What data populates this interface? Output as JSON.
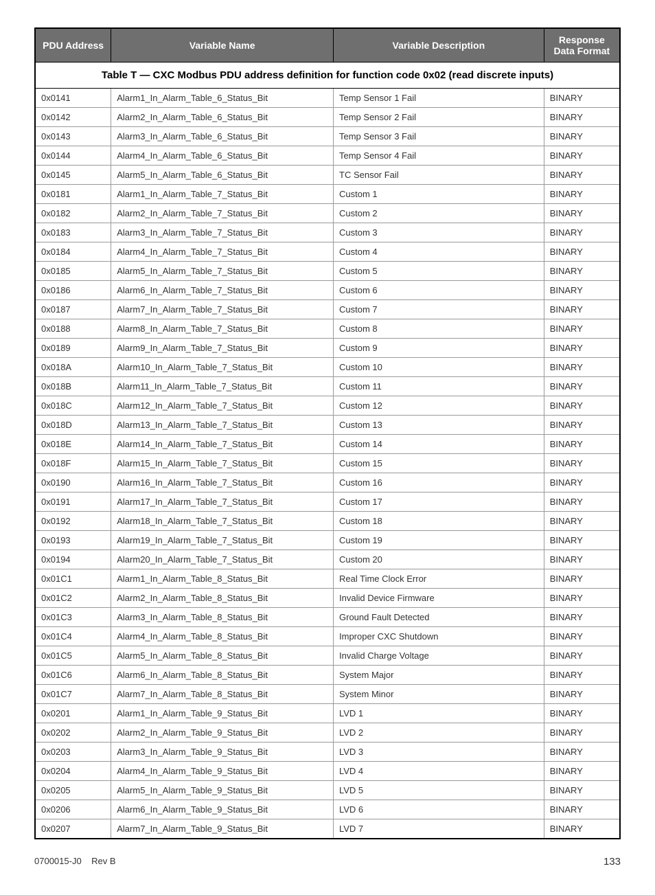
{
  "table": {
    "caption": "Table T  —  CXC Modbus PDU address definition for function code 0x02 (read discrete inputs)",
    "columns": [
      "PDU Address",
      "Variable Name",
      "Variable Description",
      "Response Data Format"
    ],
    "header_bg": "#6f6f6f",
    "header_fg": "#ffffff",
    "border_color": "#000000",
    "cell_border_color": "#999999",
    "font_family": "Arial",
    "caption_fontsize": 15,
    "header_fontsize": 14,
    "cell_fontsize": 13,
    "col_widths_pct": [
      13,
      38,
      36,
      13
    ],
    "rows": [
      [
        "0x0141",
        "Alarm1_In_Alarm_Table_6_Status_Bit",
        "Temp Sensor 1 Fail",
        "BINARY"
      ],
      [
        "0x0142",
        "Alarm2_In_Alarm_Table_6_Status_Bit",
        "Temp Sensor 2 Fail",
        "BINARY"
      ],
      [
        "0x0143",
        "Alarm3_In_Alarm_Table_6_Status_Bit",
        "Temp Sensor 3 Fail",
        "BINARY"
      ],
      [
        "0x0144",
        "Alarm4_In_Alarm_Table_6_Status_Bit",
        "Temp Sensor 4 Fail",
        "BINARY"
      ],
      [
        "0x0145",
        "Alarm5_In_Alarm_Table_6_Status_Bit",
        "TC Sensor Fail",
        "BINARY"
      ],
      [
        "0x0181",
        "Alarm1_In_Alarm_Table_7_Status_Bit",
        "Custom 1",
        "BINARY"
      ],
      [
        "0x0182",
        "Alarm2_In_Alarm_Table_7_Status_Bit",
        "Custom 2",
        "BINARY"
      ],
      [
        "0x0183",
        "Alarm3_In_Alarm_Table_7_Status_Bit",
        "Custom 3",
        "BINARY"
      ],
      [
        "0x0184",
        "Alarm4_In_Alarm_Table_7_Status_Bit",
        "Custom 4",
        "BINARY"
      ],
      [
        "0x0185",
        "Alarm5_In_Alarm_Table_7_Status_Bit",
        "Custom 5",
        "BINARY"
      ],
      [
        "0x0186",
        "Alarm6_In_Alarm_Table_7_Status_Bit",
        "Custom 6",
        "BINARY"
      ],
      [
        "0x0187",
        "Alarm7_In_Alarm_Table_7_Status_Bit",
        "Custom 7",
        "BINARY"
      ],
      [
        "0x0188",
        "Alarm8_In_Alarm_Table_7_Status_Bit",
        "Custom 8",
        "BINARY"
      ],
      [
        "0x0189",
        "Alarm9_In_Alarm_Table_7_Status_Bit",
        "Custom 9",
        "BINARY"
      ],
      [
        "0x018A",
        "Alarm10_In_Alarm_Table_7_Status_Bit",
        "Custom 10",
        "BINARY"
      ],
      [
        "0x018B",
        "Alarm11_In_Alarm_Table_7_Status_Bit",
        "Custom 11",
        "BINARY"
      ],
      [
        "0x018C",
        "Alarm12_In_Alarm_Table_7_Status_Bit",
        "Custom 12",
        "BINARY"
      ],
      [
        "0x018D",
        "Alarm13_In_Alarm_Table_7_Status_Bit",
        "Custom 13",
        "BINARY"
      ],
      [
        "0x018E",
        "Alarm14_In_Alarm_Table_7_Status_Bit",
        "Custom 14",
        "BINARY"
      ],
      [
        "0x018F",
        "Alarm15_In_Alarm_Table_7_Status_Bit",
        "Custom 15",
        "BINARY"
      ],
      [
        "0x0190",
        "Alarm16_In_Alarm_Table_7_Status_Bit",
        "Custom 16",
        "BINARY"
      ],
      [
        "0x0191",
        "Alarm17_In_Alarm_Table_7_Status_Bit",
        "Custom 17",
        "BINARY"
      ],
      [
        "0x0192",
        "Alarm18_In_Alarm_Table_7_Status_Bit",
        "Custom 18",
        "BINARY"
      ],
      [
        "0x0193",
        "Alarm19_In_Alarm_Table_7_Status_Bit",
        "Custom 19",
        "BINARY"
      ],
      [
        "0x0194",
        "Alarm20_In_Alarm_Table_7_Status_Bit",
        "Custom 20",
        "BINARY"
      ],
      [
        "0x01C1",
        "Alarm1_In_Alarm_Table_8_Status_Bit",
        "Real Time Clock Error",
        "BINARY"
      ],
      [
        "0x01C2",
        "Alarm2_In_Alarm_Table_8_Status_Bit",
        "Invalid Device Firmware",
        "BINARY"
      ],
      [
        "0x01C3",
        "Alarm3_In_Alarm_Table_8_Status_Bit",
        "Ground Fault Detected",
        "BINARY"
      ],
      [
        "0x01C4",
        "Alarm4_In_Alarm_Table_8_Status_Bit",
        "Improper CXC Shutdown",
        "BINARY"
      ],
      [
        "0x01C5",
        "Alarm5_In_Alarm_Table_8_Status_Bit",
        "Invalid Charge Voltage",
        "BINARY"
      ],
      [
        "0x01C6",
        "Alarm6_In_Alarm_Table_8_Status_Bit",
        "System Major",
        "BINARY"
      ],
      [
        "0x01C7",
        "Alarm7_In_Alarm_Table_8_Status_Bit",
        "System Minor",
        "BINARY"
      ],
      [
        "0x0201",
        "Alarm1_In_Alarm_Table_9_Status_Bit",
        "LVD 1",
        "BINARY"
      ],
      [
        "0x0202",
        "Alarm2_In_Alarm_Table_9_Status_Bit",
        "LVD 2",
        "BINARY"
      ],
      [
        "0x0203",
        "Alarm3_In_Alarm_Table_9_Status_Bit",
        "LVD 3",
        "BINARY"
      ],
      [
        "0x0204",
        "Alarm4_In_Alarm_Table_9_Status_Bit",
        "LVD 4",
        "BINARY"
      ],
      [
        "0x0205",
        "Alarm5_In_Alarm_Table_9_Status_Bit",
        "LVD 5",
        "BINARY"
      ],
      [
        "0x0206",
        "Alarm6_In_Alarm_Table_9_Status_Bit",
        "LVD 6",
        "BINARY"
      ],
      [
        "0x0207",
        "Alarm7_In_Alarm_Table_9_Status_Bit",
        "LVD 7",
        "BINARY"
      ]
    ]
  },
  "footer": {
    "doc_id": "0700015-J0",
    "rev": "Rev B",
    "page": "133"
  }
}
